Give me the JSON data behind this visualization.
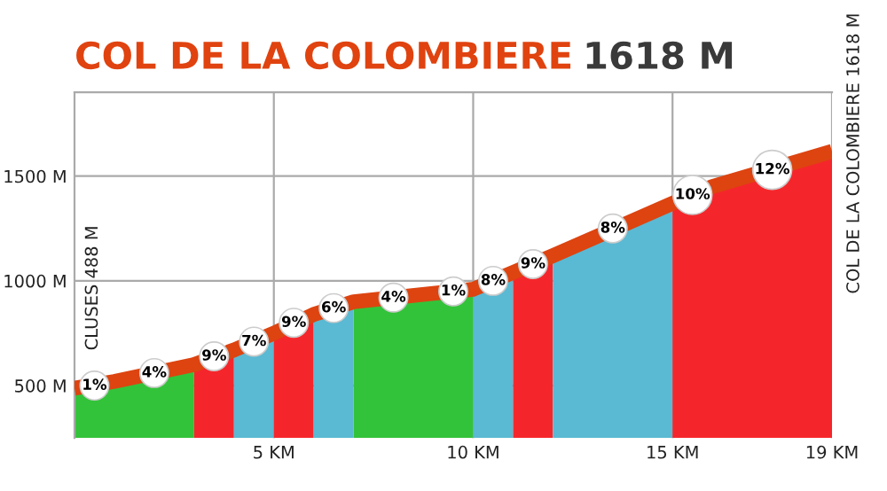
{
  "chart_data": {
    "type": "area",
    "title": "COL DE LA COLOMBIERE",
    "subtitle": "1618 M",
    "xlim": [
      0,
      19
    ],
    "ylim": [
      250,
      1900
    ],
    "xticks": [
      {
        "value": 5,
        "label": "5 KM"
      },
      {
        "value": 10,
        "label": "10 KM"
      },
      {
        "value": 15,
        "label": "15 KM"
      },
      {
        "value": 19,
        "label": "19 KM"
      }
    ],
    "yticks": [
      {
        "value": 500,
        "label": "500 M"
      },
      {
        "value": 1000,
        "label": "1000 M"
      },
      {
        "value": 1500,
        "label": "1500 M"
      }
    ],
    "grid": true,
    "line_style": "solid",
    "series": [
      {
        "color": "#33c33a",
        "x": [
          0,
          1,
          3
        ],
        "values": [
          488,
          520,
          600
        ]
      },
      {
        "color": "#f5262b",
        "x": [
          3,
          4
        ],
        "values": [
          600,
          670
        ]
      },
      {
        "color": "#5ab9d3",
        "x": [
          4,
          5
        ],
        "values": [
          670,
          750
        ]
      },
      {
        "color": "#f5262b",
        "x": [
          5,
          6
        ],
        "values": [
          750,
          840
        ]
      },
      {
        "color": "#5ab9d3",
        "x": [
          6,
          7
        ],
        "values": [
          840,
          900
        ]
      },
      {
        "color": "#33c33a",
        "x": [
          7,
          9,
          10
        ],
        "values": [
          900,
          940,
          960
        ]
      },
      {
        "color": "#5ab9d3",
        "x": [
          10,
          11
        ],
        "values": [
          960,
          1040
        ]
      },
      {
        "color": "#f5262b",
        "x": [
          11,
          12
        ],
        "values": [
          1040,
          1120
        ]
      },
      {
        "color": "#5ab9d3",
        "x": [
          12,
          15
        ],
        "values": [
          1120,
          1370
        ]
      },
      {
        "color": "#f5262b",
        "x": [
          15,
          16,
          19
        ],
        "values": [
          1370,
          1450,
          1618
        ]
      },
      {
        "type": "line",
        "color": "#dd4410",
        "x": [
          0,
          1,
          3,
          4,
          5,
          6,
          7,
          9,
          10,
          11,
          12,
          15,
          16,
          19
        ],
        "values": [
          488,
          520,
          600,
          670,
          750,
          840,
          900,
          940,
          960,
          1040,
          1120,
          1370,
          1450,
          1618
        ]
      }
    ],
    "annotations": [
      {
        "text": "1%",
        "x": 0.5,
        "y": 500
      },
      {
        "text": "4%",
        "x": 2,
        "y": 560
      },
      {
        "text": "9%",
        "x": 3.5,
        "y": 640
      },
      {
        "text": "7%",
        "x": 4.5,
        "y": 710
      },
      {
        "text": "9%",
        "x": 5.5,
        "y": 800
      },
      {
        "text": "6%",
        "x": 6.5,
        "y": 870
      },
      {
        "text": "4%",
        "x": 8,
        "y": 920
      },
      {
        "text": "1%",
        "x": 9.5,
        "y": 950
      },
      {
        "text": "8%",
        "x": 10.5,
        "y": 1000
      },
      {
        "text": "9%",
        "x": 11.5,
        "y": 1080
      },
      {
        "text": "8%",
        "x": 13.5,
        "y": 1250
      },
      {
        "text": "10%",
        "x": 15.5,
        "y": 1410
      },
      {
        "text": "12%",
        "x": 17.5,
        "y": 1530
      },
      {
        "text": "CLUSES 488 M",
        "x": 0,
        "y": 488
      },
      {
        "text": "COL DE LA COLOMBIERE 1618 M",
        "x": 19,
        "y": 1618
      }
    ]
  }
}
